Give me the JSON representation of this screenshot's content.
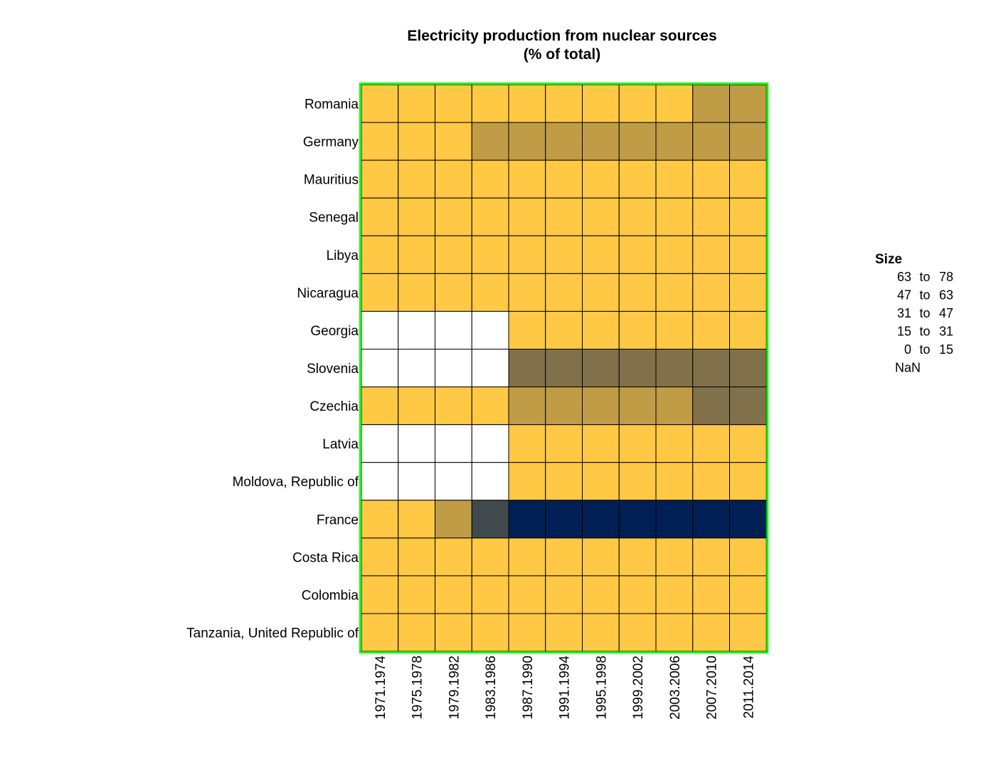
{
  "chart_data": {
    "type": "heatmap",
    "title": "Electricity production from nuclear sources",
    "subtitle": "(% of total)",
    "rows": [
      "Romania",
      "Germany",
      "Mauritius",
      "Senegal",
      "Libya",
      "Nicaragua",
      "Georgia",
      "Slovenia",
      "Czechia",
      "Latvia",
      "Moldova, Republic of",
      "France",
      "Costa Rica",
      "Colombia",
      "Tanzania, United Republic of"
    ],
    "columns": [
      "1971.1974",
      "1975.1978",
      "1979.1982",
      "1983.1986",
      "1987.1990",
      "1991.1994",
      "1995.1998",
      "1999.2002",
      "2003.2006",
      "2007.2010",
      "2011.2014"
    ],
    "bins": [
      "0 to 15",
      "15 to 31",
      "31 to 47",
      "47 to 63",
      "63 to 78",
      "NaN"
    ],
    "cells": [
      [
        "0 to 15",
        "0 to 15",
        "0 to 15",
        "0 to 15",
        "0 to 15",
        "0 to 15",
        "0 to 15",
        "0 to 15",
        "0 to 15",
        "15 to 31",
        "15 to 31"
      ],
      [
        "0 to 15",
        "0 to 15",
        "0 to 15",
        "15 to 31",
        "15 to 31",
        "15 to 31",
        "15 to 31",
        "15 to 31",
        "15 to 31",
        "15 to 31",
        "15 to 31"
      ],
      [
        "0 to 15",
        "0 to 15",
        "0 to 15",
        "0 to 15",
        "0 to 15",
        "0 to 15",
        "0 to 15",
        "0 to 15",
        "0 to 15",
        "0 to 15",
        "0 to 15"
      ],
      [
        "0 to 15",
        "0 to 15",
        "0 to 15",
        "0 to 15",
        "0 to 15",
        "0 to 15",
        "0 to 15",
        "0 to 15",
        "0 to 15",
        "0 to 15",
        "0 to 15"
      ],
      [
        "0 to 15",
        "0 to 15",
        "0 to 15",
        "0 to 15",
        "0 to 15",
        "0 to 15",
        "0 to 15",
        "0 to 15",
        "0 to 15",
        "0 to 15",
        "0 to 15"
      ],
      [
        "0 to 15",
        "0 to 15",
        "0 to 15",
        "0 to 15",
        "0 to 15",
        "0 to 15",
        "0 to 15",
        "0 to 15",
        "0 to 15",
        "0 to 15",
        "0 to 15"
      ],
      [
        "NaN",
        "NaN",
        "NaN",
        "NaN",
        "0 to 15",
        "0 to 15",
        "0 to 15",
        "0 to 15",
        "0 to 15",
        "0 to 15",
        "0 to 15"
      ],
      [
        "NaN",
        "NaN",
        "NaN",
        "NaN",
        "31 to 47",
        "31 to 47",
        "31 to 47",
        "31 to 47",
        "31 to 47",
        "31 to 47",
        "31 to 47"
      ],
      [
        "0 to 15",
        "0 to 15",
        "0 to 15",
        "0 to 15",
        "15 to 31",
        "15 to 31",
        "15 to 31",
        "15 to 31",
        "15 to 31",
        "31 to 47",
        "31 to 47"
      ],
      [
        "NaN",
        "NaN",
        "NaN",
        "NaN",
        "0 to 15",
        "0 to 15",
        "0 to 15",
        "0 to 15",
        "0 to 15",
        "0 to 15",
        "0 to 15"
      ],
      [
        "NaN",
        "NaN",
        "NaN",
        "NaN",
        "0 to 15",
        "0 to 15",
        "0 to 15",
        "0 to 15",
        "0 to 15",
        "0 to 15",
        "0 to 15"
      ],
      [
        "0 to 15",
        "0 to 15",
        "15 to 31",
        "47 to 63",
        "63 to 78",
        "63 to 78",
        "63 to 78",
        "63 to 78",
        "63 to 78",
        "63 to 78",
        "63 to 78"
      ],
      [
        "0 to 15",
        "0 to 15",
        "0 to 15",
        "0 to 15",
        "0 to 15",
        "0 to 15",
        "0 to 15",
        "0 to 15",
        "0 to 15",
        "0 to 15",
        "0 to 15"
      ],
      [
        "0 to 15",
        "0 to 15",
        "0 to 15",
        "0 to 15",
        "0 to 15",
        "0 to 15",
        "0 to 15",
        "0 to 15",
        "0 to 15",
        "0 to 15",
        "0 to 15"
      ],
      [
        "0 to 15",
        "0 to 15",
        "0 to 15",
        "0 to 15",
        "0 to 15",
        "0 to 15",
        "0 to 15",
        "0 to 15",
        "0 to 15",
        "0 to 15",
        "0 to 15"
      ]
    ],
    "bin_colors": {
      "0 to 15": "#ffc845",
      "15 to 31": "#c09c47",
      "31 to 47": "#80714a",
      "47 to 63": "#404a4d",
      "63 to 78": "#001f54",
      "NaN": "#ffffff"
    },
    "frame_color": "#00ff00",
    "legend": {
      "title": "Size",
      "entries": [
        {
          "from": "63",
          "sep": "to",
          "to": "78"
        },
        {
          "from": "47",
          "sep": "to",
          "to": "63"
        },
        {
          "from": "31",
          "sep": "to",
          "to": "47"
        },
        {
          "from": "15",
          "sep": "to",
          "to": "31"
        },
        {
          "from": "0",
          "sep": "to",
          "to": "15"
        },
        {
          "label": "NaN"
        }
      ],
      "position": "right"
    }
  }
}
